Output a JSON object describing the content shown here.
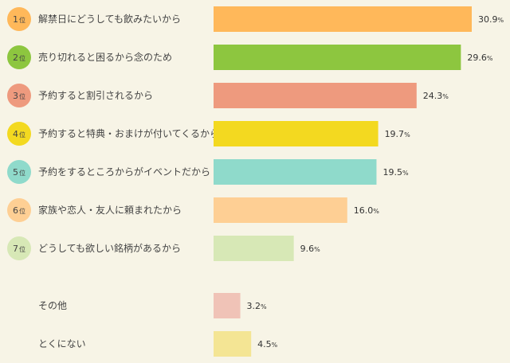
{
  "chart_data": {
    "type": "bar",
    "orientation": "horizontal",
    "grid": false,
    "ranked": [
      {
        "rank": "1",
        "rank_suffix": "位",
        "label": "解禁日にどうしても飲みたいから",
        "value": 30.9,
        "display": "30.9",
        "color": "#ffb85a",
        "badge_color": "#ffb85a"
      },
      {
        "rank": "2",
        "rank_suffix": "位",
        "label": "売り切れると困るから念のため",
        "value": 29.6,
        "display": "29.6",
        "color": "#8dc63f",
        "badge_color": "#8dc63f"
      },
      {
        "rank": "3",
        "rank_suffix": "位",
        "label": "予約すると割引されるから",
        "value": 24.3,
        "display": "24.3",
        "color": "#ee9a7e",
        "badge_color": "#ee9a7e"
      },
      {
        "rank": "4",
        "rank_suffix": "位",
        "label": "予約すると特典・おまけが付いてくるから",
        "value": 19.7,
        "display": "19.7",
        "color": "#f3d920",
        "badge_color": "#f3d920"
      },
      {
        "rank": "5",
        "rank_suffix": "位",
        "label": "予約をするところからがイベントだから",
        "value": 19.5,
        "display": "19.5",
        "color": "#8fdacb",
        "badge_color": "#8fdacb"
      },
      {
        "rank": "6",
        "rank_suffix": "位",
        "label": "家族や恋人・友人に頼まれたから",
        "value": 16.0,
        "display": "16.0",
        "color": "#fecf94",
        "badge_color": "#fecf94"
      },
      {
        "rank": "7",
        "rank_suffix": "位",
        "label": "どうしても欲しい銘柄があるから",
        "value": 9.6,
        "display": "9.6",
        "color": "#d7e8b6",
        "badge_color": "#d7e8b6"
      }
    ],
    "others": [
      {
        "label": "その他",
        "value": 3.2,
        "display": "3.2",
        "color": "#f0c3b7"
      },
      {
        "label": "とくにない",
        "value": 4.5,
        "display": "4.5",
        "color": "#f4e594"
      }
    ],
    "unit": "%",
    "xlim": [
      0,
      36
    ]
  }
}
